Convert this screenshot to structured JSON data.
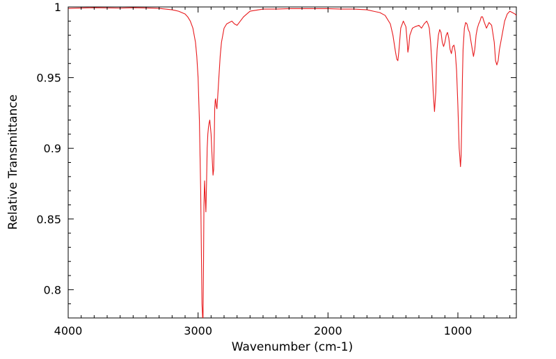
{
  "chart_data": {
    "type": "line",
    "title": "",
    "xlabel": "Wavenumber (cm-1)",
    "ylabel": "Relative Transmittance",
    "xlim": [
      4000,
      550
    ],
    "ylim": [
      0.78,
      1.0
    ],
    "x_reversed": true,
    "grid": false,
    "x_ticks": [
      4000,
      3000,
      2000,
      1000
    ],
    "x_tick_labels": [
      "4000",
      "3000",
      "2000",
      "1000"
    ],
    "y_ticks": [
      0.8,
      0.85,
      0.9,
      0.95,
      1.0
    ],
    "y_tick_labels": [
      "0.8",
      "0.85",
      "0.9",
      "0.95",
      "1"
    ],
    "series": [
      {
        "color": "#e8191c",
        "x": [
          4000,
          3800,
          3600,
          3500,
          3400,
          3300,
          3250,
          3200,
          3150,
          3100,
          3080,
          3060,
          3040,
          3020,
          3010,
          3000,
          2990,
          2980,
          2975,
          2970,
          2965,
          2962,
          2958,
          2955,
          2950,
          2945,
          2940,
          2935,
          2930,
          2925,
          2920,
          2915,
          2910,
          2900,
          2890,
          2885,
          2880,
          2875,
          2872,
          2868,
          2865,
          2860,
          2855,
          2850,
          2840,
          2830,
          2820,
          2800,
          2780,
          2760,
          2740,
          2720,
          2700,
          2650,
          2600,
          2500,
          2400,
          2300,
          2200,
          2100,
          2000,
          1900,
          1800,
          1700,
          1650,
          1600,
          1560,
          1520,
          1500,
          1480,
          1470,
          1462,
          1455,
          1440,
          1420,
          1400,
          1390,
          1385,
          1378,
          1370,
          1350,
          1330,
          1300,
          1280,
          1260,
          1240,
          1230,
          1220,
          1210,
          1200,
          1190,
          1180,
          1170,
          1165,
          1160,
          1150,
          1140,
          1130,
          1120,
          1110,
          1100,
          1090,
          1080,
          1070,
          1060,
          1050,
          1040,
          1030,
          1020,
          1010,
          1000,
          990,
          980,
          975,
          970,
          965,
          960,
          950,
          940,
          930,
          920,
          910,
          900,
          880,
          870,
          860,
          850,
          840,
          830,
          820,
          810,
          800,
          780,
          760,
          740,
          720,
          710,
          700,
          690,
          680,
          660,
          640,
          620,
          600,
          580,
          560,
          550
        ],
        "y": [
          0.999,
          0.9995,
          0.9992,
          0.9995,
          0.9993,
          0.999,
          0.9985,
          0.998,
          0.997,
          0.995,
          0.993,
          0.99,
          0.985,
          0.975,
          0.965,
          0.95,
          0.92,
          0.87,
          0.83,
          0.79,
          0.775,
          0.78,
          0.82,
          0.86,
          0.877,
          0.865,
          0.855,
          0.875,
          0.9,
          0.91,
          0.915,
          0.918,
          0.92,
          0.91,
          0.89,
          0.881,
          0.885,
          0.91,
          0.928,
          0.934,
          0.935,
          0.93,
          0.928,
          0.935,
          0.95,
          0.965,
          0.975,
          0.985,
          0.988,
          0.989,
          0.99,
          0.988,
          0.987,
          0.993,
          0.997,
          0.9985,
          0.9985,
          0.9988,
          0.9988,
          0.9988,
          0.9988,
          0.9985,
          0.9985,
          0.998,
          0.997,
          0.996,
          0.994,
          0.988,
          0.98,
          0.968,
          0.963,
          0.962,
          0.968,
          0.985,
          0.99,
          0.986,
          0.975,
          0.968,
          0.972,
          0.98,
          0.985,
          0.986,
          0.987,
          0.985,
          0.988,
          0.99,
          0.988,
          0.985,
          0.975,
          0.96,
          0.94,
          0.926,
          0.94,
          0.96,
          0.97,
          0.98,
          0.984,
          0.982,
          0.975,
          0.972,
          0.975,
          0.98,
          0.982,
          0.978,
          0.97,
          0.967,
          0.972,
          0.973,
          0.968,
          0.955,
          0.93,
          0.9,
          0.887,
          0.895,
          0.92,
          0.95,
          0.97,
          0.985,
          0.989,
          0.988,
          0.984,
          0.982,
          0.976,
          0.965,
          0.97,
          0.98,
          0.985,
          0.988,
          0.99,
          0.993,
          0.993,
          0.99,
          0.985,
          0.989,
          0.987,
          0.975,
          0.962,
          0.959,
          0.962,
          0.97,
          0.98,
          0.99,
          0.995,
          0.997,
          0.996,
          0.995,
          0.994
        ]
      }
    ]
  }
}
